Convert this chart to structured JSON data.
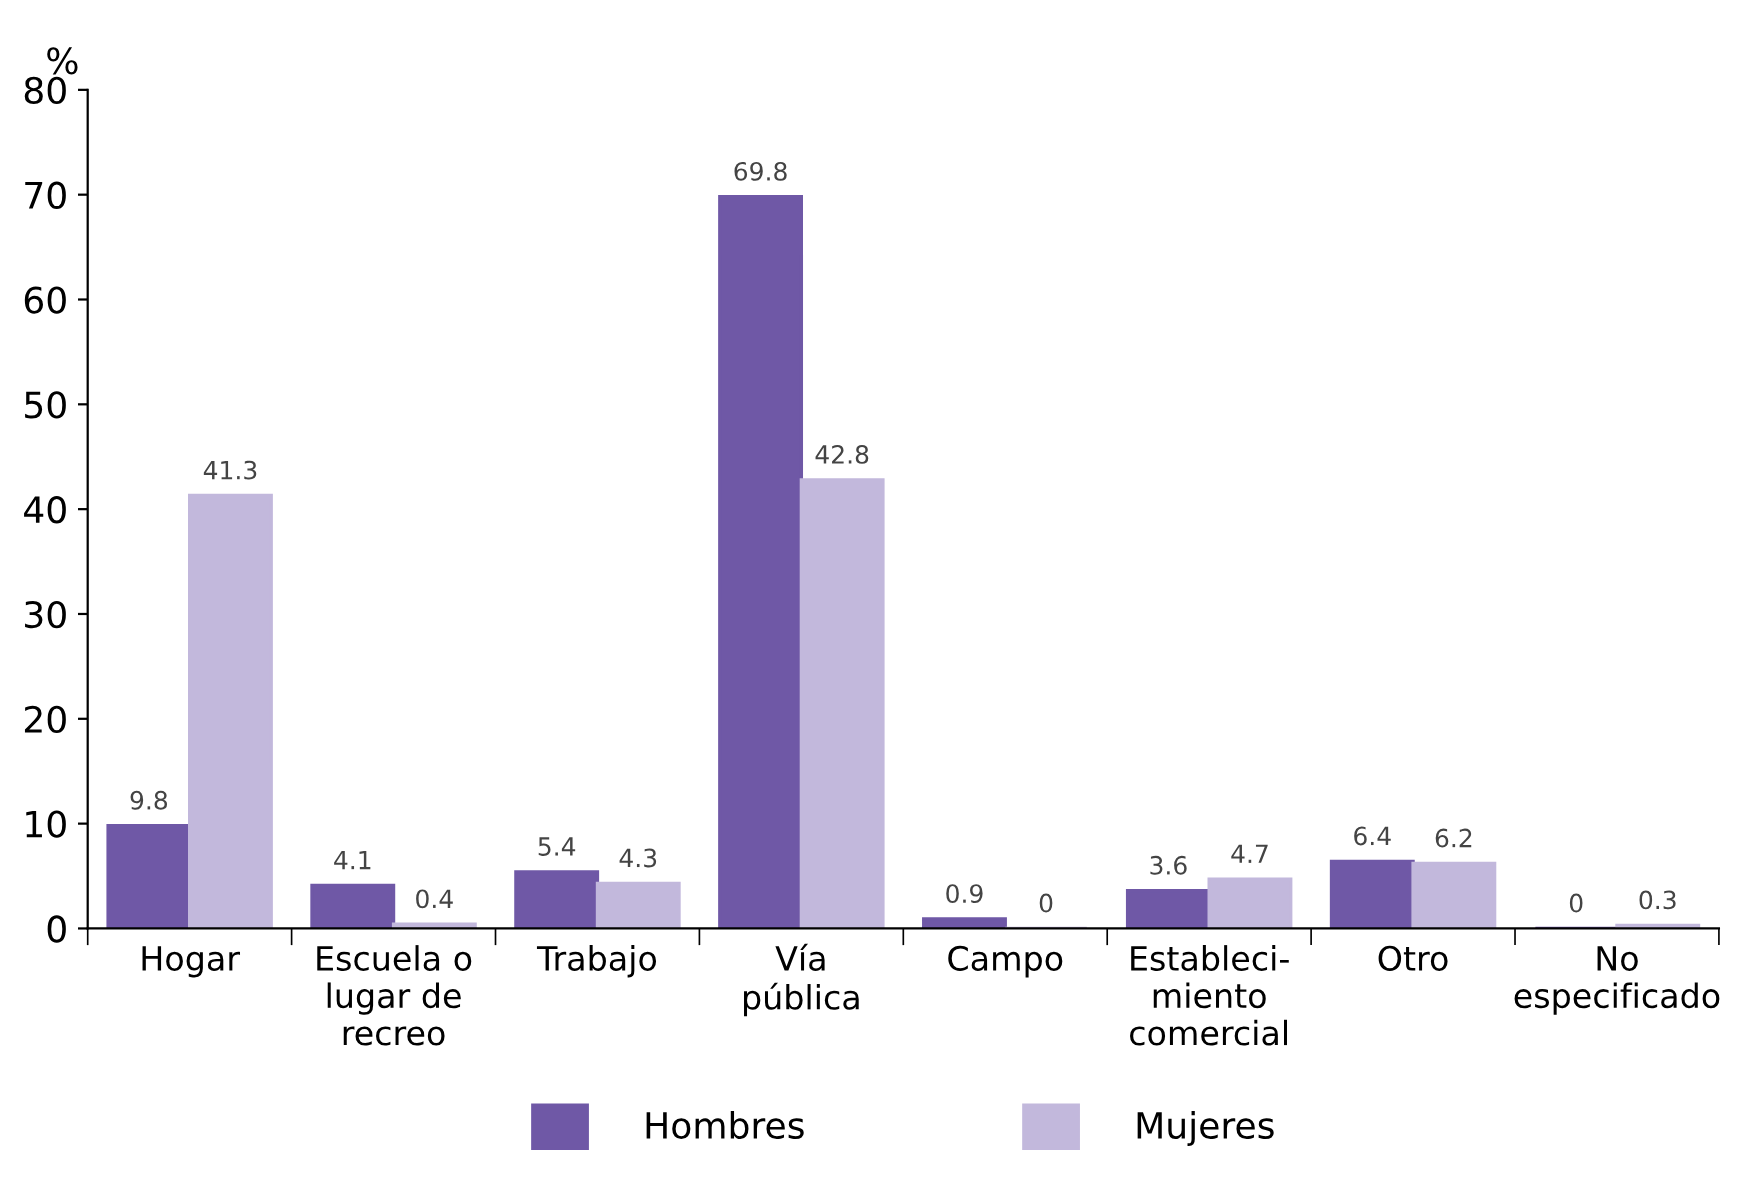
{
  "chart_data": {
    "type": "bar",
    "ylabel": "%",
    "categories": [
      "Hogar",
      "Escuela o\nlugar de\nrecreo",
      "Trabajo",
      "Vía\npública",
      "Campo",
      "Estableci-\nmiento\ncomercial",
      "Otro",
      "No\nespecificado"
    ],
    "series": [
      {
        "name": "Hombres",
        "color": "#6f58a6",
        "values": [
          9.8,
          4.1,
          5.4,
          69.8,
          0.9,
          3.6,
          6.4,
          0
        ]
      },
      {
        "name": "Mujeres",
        "color": "#c2b8dc",
        "values": [
          41.3,
          0.4,
          4.3,
          42.8,
          0,
          4.7,
          6.2,
          0.3
        ]
      }
    ],
    "ylim": [
      0,
      80
    ],
    "yticks": [
      0,
      10,
      20,
      30,
      40,
      50,
      60,
      70,
      80
    ],
    "grid": false,
    "legend": "bottom",
    "data_labels": true
  }
}
